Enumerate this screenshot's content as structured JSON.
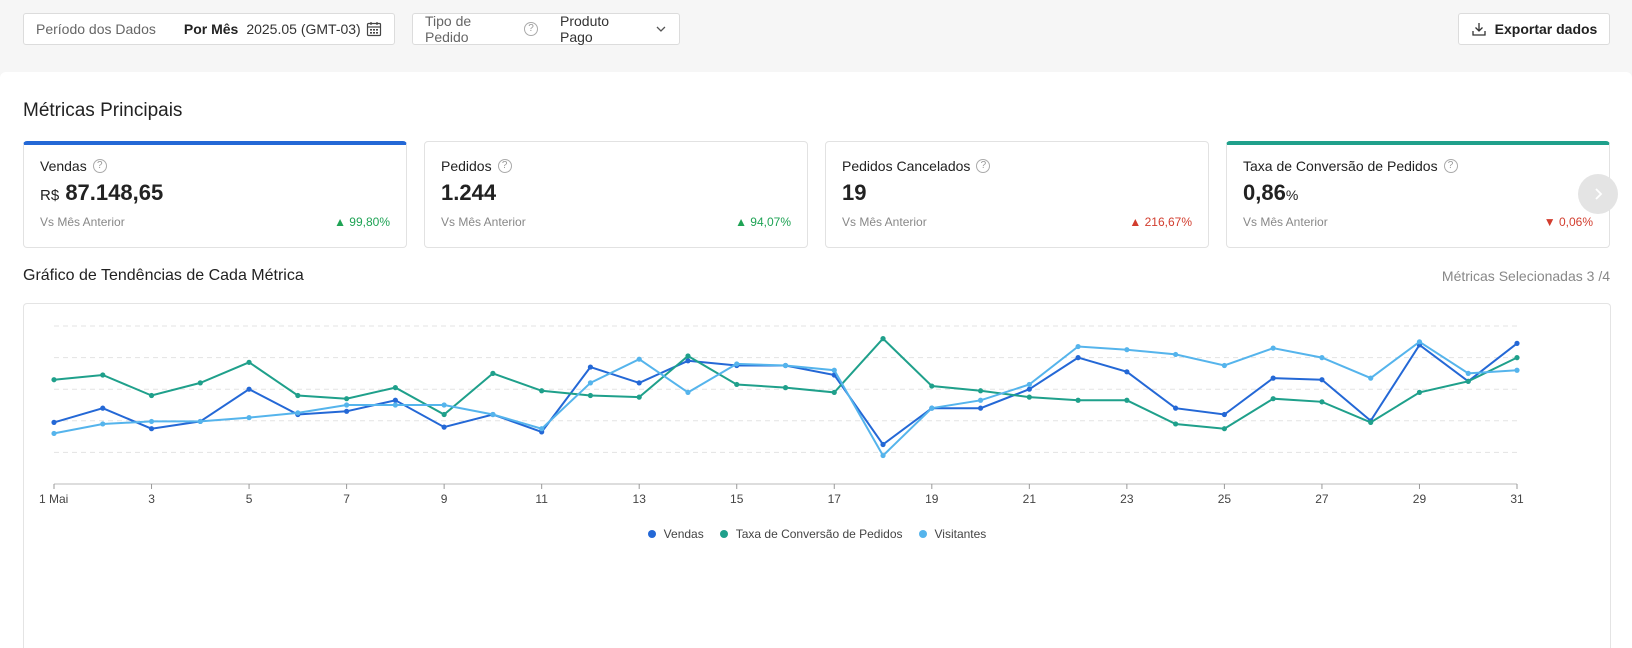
{
  "filters": {
    "period_label": "Período dos Dados",
    "period_mode": "Por Mês",
    "period_value": "2025.05 (GMT-03)",
    "order_type_label": "Tipo de Pedido",
    "order_type_value": "Produto Pago"
  },
  "export_label": "Exportar dados",
  "section_title": "Métricas Principais",
  "cards": [
    {
      "title": "Vendas",
      "currency": "R$",
      "value": "87.148,65",
      "unit": "",
      "compare": "Vs Mês Anterior",
      "delta": "99,80%",
      "direction": "up"
    },
    {
      "title": "Pedidos",
      "currency": "",
      "value": "1.244",
      "unit": "",
      "compare": "Vs Mês Anterior",
      "delta": "94,07%",
      "direction": "up"
    },
    {
      "title": "Pedidos Cancelados",
      "currency": "",
      "value": "19",
      "unit": "",
      "compare": "Vs Mês Anterior",
      "delta": "216,67%",
      "direction": "up"
    },
    {
      "title": "Taxa de Conversão de Pedidos",
      "currency": "",
      "value": "0,86",
      "unit": "%",
      "compare": "Vs Mês Anterior",
      "delta": "0,06%",
      "direction": "down"
    }
  ],
  "trend_title": "Gráfico de Tendências de Cada Métrica",
  "trend_selected": "Métricas Selecionadas 3 /4",
  "colors": {
    "vendas": "#2468d6",
    "conversao": "#1fa08b",
    "visitantes": "#55b4ec",
    "up": "#1fa355",
    "down": "#d23d2e"
  },
  "chart_data": {
    "type": "line",
    "x": [
      1,
      2,
      3,
      4,
      5,
      6,
      7,
      8,
      9,
      10,
      11,
      12,
      13,
      14,
      15,
      16,
      17,
      18,
      19,
      20,
      21,
      22,
      23,
      24,
      25,
      26,
      27,
      28,
      29,
      30,
      31
    ],
    "x_tick_labels": [
      "1 Mai",
      "3",
      "5",
      "7",
      "9",
      "11",
      "13",
      "15",
      "17",
      "19",
      "21",
      "23",
      "25",
      "27",
      "29",
      "31"
    ],
    "ylim": [
      0,
      5
    ],
    "grid": true,
    "legend_position": "bottom",
    "series": [
      {
        "name": "Vendas",
        "color": "#2468d6",
        "values": [
          1.95,
          2.4,
          1.75,
          1.98,
          3.0,
          2.2,
          2.3,
          2.65,
          1.8,
          2.2,
          1.65,
          3.7,
          3.2,
          3.9,
          3.75,
          3.75,
          3.45,
          1.25,
          2.4,
          2.4,
          3.0,
          4.0,
          3.55,
          2.4,
          2.2,
          3.35,
          3.3,
          2.0,
          4.4,
          3.25,
          4.45
        ]
      },
      {
        "name": "Taxa de Conversão de Pedidos",
        "color": "#1fa08b",
        "values": [
          3.3,
          3.45,
          2.8,
          3.2,
          3.85,
          2.8,
          2.7,
          3.05,
          2.2,
          3.5,
          2.95,
          2.8,
          2.75,
          4.05,
          3.15,
          3.05,
          2.9,
          4.6,
          3.1,
          2.95,
          2.75,
          2.65,
          2.65,
          1.9,
          1.75,
          2.7,
          2.6,
          1.95,
          2.9,
          3.25,
          4.0
        ]
      },
      {
        "name": "Visitantes",
        "color": "#55b4ec",
        "values": [
          1.6,
          1.9,
          1.98,
          1.98,
          2.1,
          2.25,
          2.5,
          2.5,
          2.5,
          2.2,
          1.75,
          3.2,
          3.95,
          2.9,
          3.8,
          3.75,
          3.6,
          0.9,
          2.4,
          2.65,
          3.15,
          4.35,
          4.25,
          4.1,
          3.75,
          4.3,
          4.0,
          3.35,
          4.5,
          3.5,
          3.6
        ]
      }
    ]
  }
}
